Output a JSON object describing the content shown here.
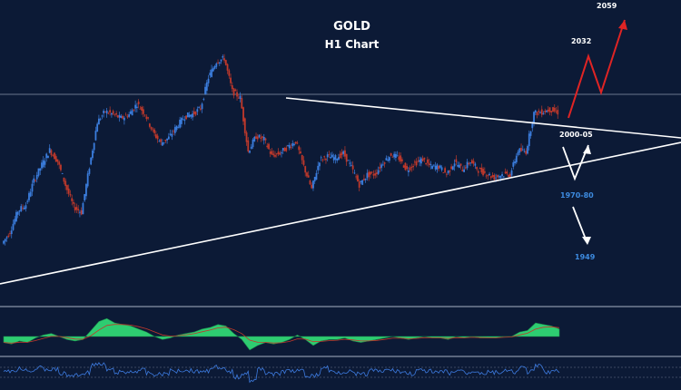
{
  "chart_data": {
    "type": "candlestick",
    "title": "GOLD",
    "subtitle": "H1 Chart",
    "annotations": [
      {
        "label": "2059",
        "color": "#ffffff"
      },
      {
        "label": "2032",
        "color": "#ffffff"
      },
      {
        "label": "2000-05",
        "color": "#ffffff"
      },
      {
        "label": "1970-80",
        "color": "#3d8be0"
      },
      {
        "label": "1949",
        "color": "#3d8be0"
      }
    ],
    "price_range": [
      1935,
      2065
    ],
    "close": [
      1950.0,
      1955.7,
      1966.2,
      1969.2,
      1981.1,
      1988.9,
      1996.2,
      1990.6,
      1978.8,
      1968.2,
      1965.4,
      1987.9,
      2010.0,
      2015.4,
      2013.8,
      2011.9,
      2013.8,
      2019.1,
      2014.1,
      2005.2,
      1999.6,
      2002.3,
      2007.8,
      2012.8,
      2014.0,
      2016.8,
      2032.1,
      2040.0,
      2041.5,
      2025.3,
      2022.0,
      1995.5,
      2003.1,
      2001.4,
      1993.3,
      1994.7,
      1997.8,
      2000.5,
      1988.2,
      1976.9,
      1991.3,
      1993.1,
      1992.3,
      1994.6,
      1987.7,
      1979.1,
      1984.0,
      1984.4,
      1990.1,
      1994.0,
      1992.2,
      1986.4,
      1989.7,
      1991.6,
      1987.9,
      1988.1,
      1984.4,
      1990.2,
      1986.7,
      1990.6,
      1986.4,
      1984.5,
      1982.6,
      1984.2,
      1984.1,
      1996.0,
      1995.5,
      2014.4,
      2015.0,
      2016.3,
      2014.8
    ],
    "macd_histogram": [
      -2.0,
      -2.5,
      -1.5,
      -2.0,
      -0.5,
      0.5,
      1.0,
      0.0,
      -1.0,
      -1.5,
      -1.0,
      2.0,
      5.0,
      6.0,
      4.5,
      4.0,
      3.5,
      2.5,
      1.5,
      0.0,
      -1.0,
      -0.5,
      0.5,
      1.0,
      1.5,
      2.5,
      3.0,
      4.0,
      3.5,
      1.0,
      -1.0,
      -4.5,
      -3.0,
      -2.0,
      -2.5,
      -2.0,
      -1.0,
      0.5,
      -1.0,
      -3.0,
      -1.5,
      -1.0,
      -1.0,
      -0.5,
      -1.5,
      -2.0,
      -1.5,
      -1.0,
      -0.5,
      0.0,
      -0.5,
      -1.0,
      -0.5,
      0.0,
      -0.5,
      -0.5,
      -1.0,
      0.0,
      -0.5,
      0.0,
      -0.5,
      -0.5,
      -0.5,
      0.0,
      0.0,
      1.5,
      2.0,
      4.5,
      4.0,
      3.5,
      2.5
    ]
  }
}
